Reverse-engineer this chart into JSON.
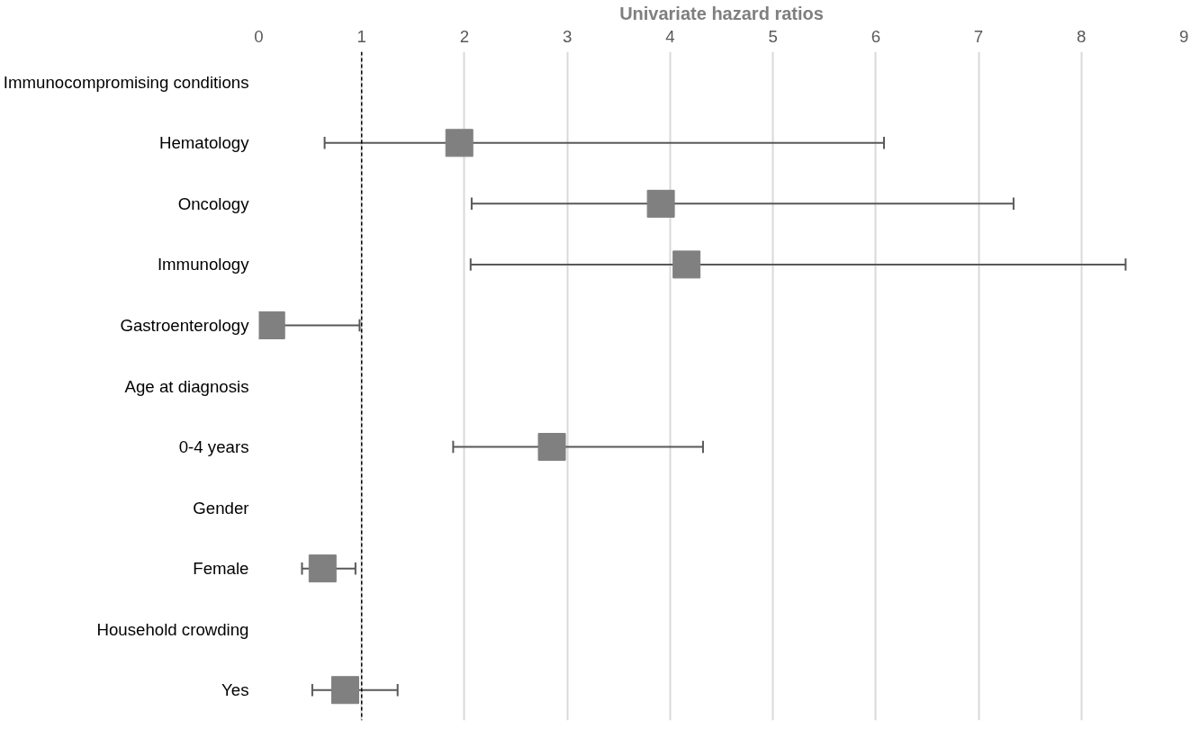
{
  "chart_data": {
    "type": "scatter",
    "orientation": "horizontal",
    "xlabel": "Univariate hazard ratios",
    "categories": [
      "Immunocompromising conditions",
      "Hematology",
      "Oncology",
      "Immunology",
      "Gastroenterology",
      "Age at diagnosis",
      "0-4 years",
      "Gender",
      "Female",
      "Household crowding",
      "Yes"
    ],
    "series": [
      {
        "color": "#808080",
        "values": [
          null,
          1.95,
          3.91,
          4.16,
          0.12,
          null,
          2.85,
          null,
          0.62,
          null,
          0.84
        ],
        "errors": [
          null,
          [
            0.64,
            6.08
          ],
          [
            2.07,
            7.34
          ],
          [
            2.06,
            8.43
          ],
          [
            0.02,
            0.98
          ],
          null,
          [
            1.89,
            4.32
          ],
          null,
          [
            0.42,
            0.94
          ],
          null,
          [
            0.52,
            1.35
          ]
        ]
      }
    ],
    "xlim": [
      0,
      9
    ],
    "xticks": [
      0,
      1,
      2,
      3,
      4,
      5,
      6,
      7,
      8,
      9
    ],
    "grid": "x",
    "marker": "square",
    "ref_lines": [
      {
        "axis": "x",
        "value": 1,
        "color": "#000000",
        "line_style": "dashed"
      }
    ]
  }
}
